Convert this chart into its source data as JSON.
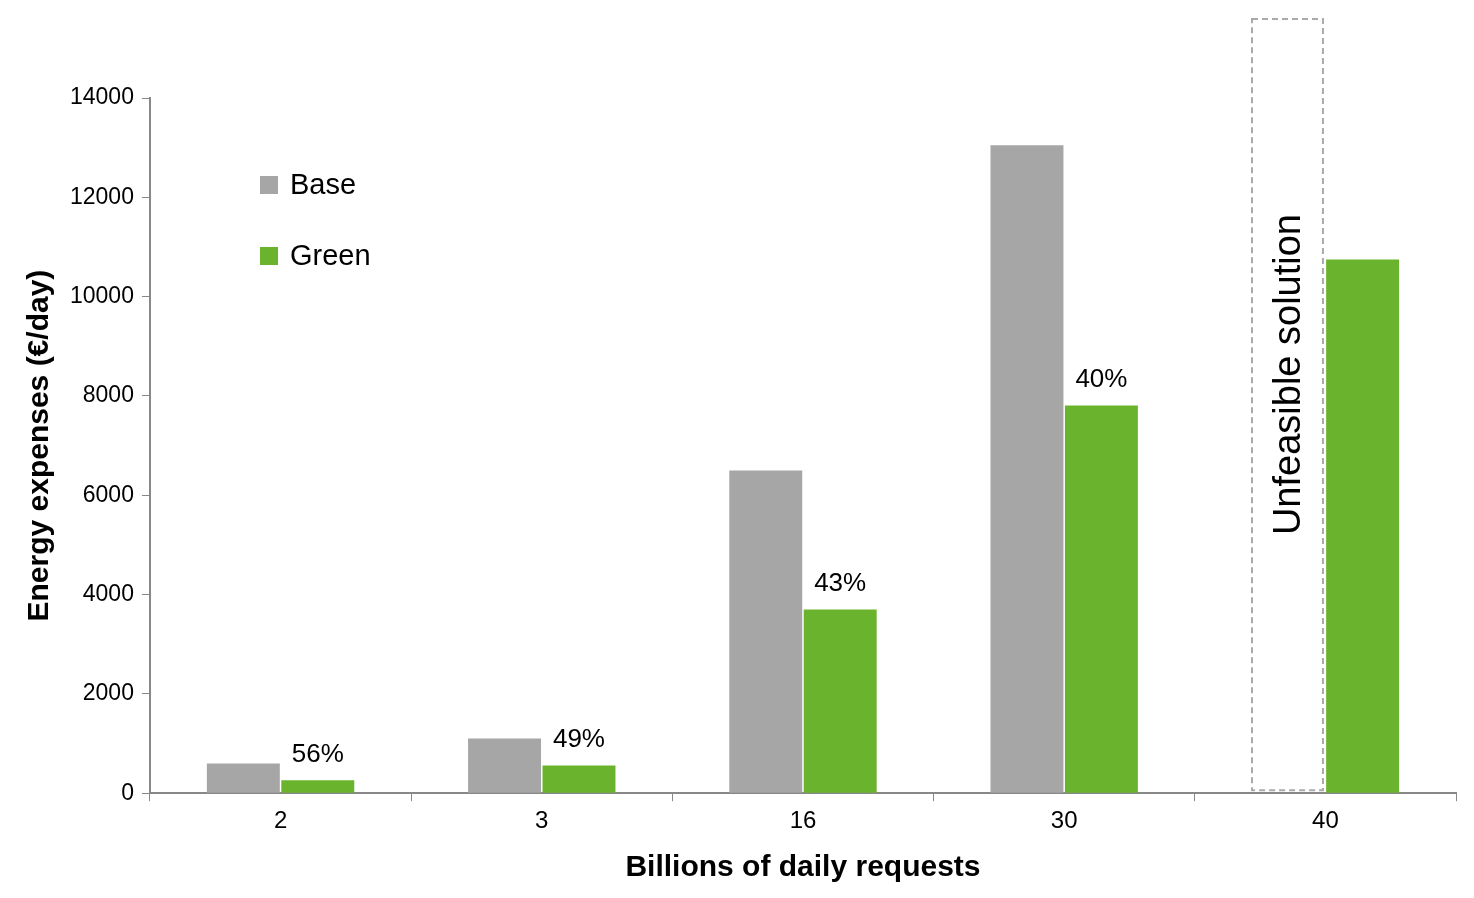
{
  "chart_data": {
    "type": "bar",
    "xlabel": "Billions of daily requests",
    "ylabel": "Energy expenses (€/day)",
    "categories": [
      "2",
      "3",
      "16",
      "30",
      "40"
    ],
    "series": [
      {
        "name": "Base",
        "color": "#a6a6a6",
        "values": [
          600,
          1100,
          6500,
          13050,
          null
        ]
      },
      {
        "name": "Green",
        "color": "#6ab42d",
        "values": [
          260,
          560,
          3700,
          7810,
          10750
        ]
      }
    ],
    "ylim": [
      0,
      14000
    ],
    "yticks": [
      0,
      2000,
      4000,
      6000,
      8000,
      10000,
      12000,
      14000
    ],
    "grid": false,
    "legend": "top left",
    "annotations": [
      {
        "text": "56%",
        "x": "2",
        "y": 260
      },
      {
        "text": "49%",
        "x": "3",
        "y": 560
      },
      {
        "text": "43%",
        "x": "16",
        "y": 3700
      },
      {
        "text": "40%",
        "x": "30",
        "y": 7810
      },
      {
        "text": "Unfeasible solution",
        "x": "40"
      }
    ]
  }
}
